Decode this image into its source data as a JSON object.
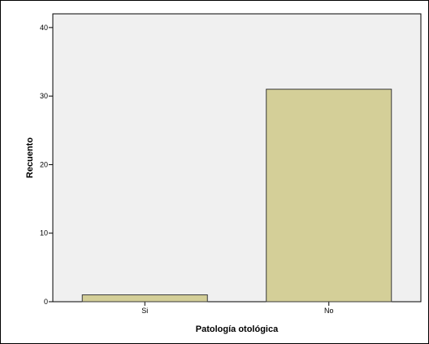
{
  "chart_data": {
    "type": "bar",
    "categories": [
      "Si",
      "No"
    ],
    "values": [
      1,
      31
    ],
    "xlabel": "Patología otológica",
    "ylabel": "Recuento",
    "ylim": [
      0,
      42
    ],
    "yticks": [
      0,
      10,
      20,
      30,
      40
    ],
    "grid": false,
    "colors": {
      "bar_fill": "#d4cf98",
      "bar_stroke": "#3a3a3a",
      "plot_background": "#f0f0f0",
      "axis": "#000000"
    }
  }
}
